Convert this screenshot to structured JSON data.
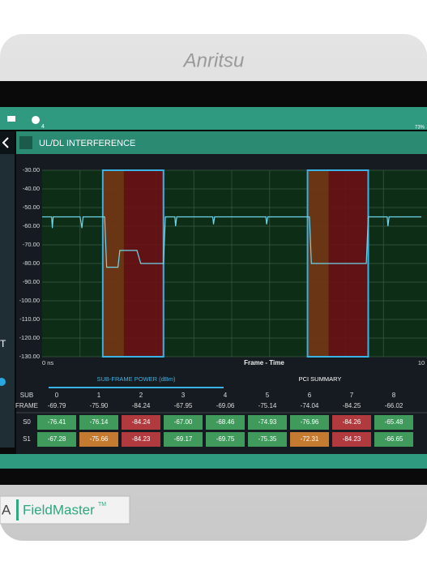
{
  "device": {
    "brand": "Anritsu",
    "model": "FieldMaster",
    "model_mark": "TM",
    "logo_fragment": "A"
  },
  "status_bar": {
    "notifications": "4",
    "battery": "73%"
  },
  "sidebar_text": "T",
  "header": {
    "title": "UL/DL INTERFERENCE"
  },
  "chart_data": {
    "type": "line",
    "x": [
      0,
      0.25,
      0.27,
      0.29,
      1.0,
      1.05,
      1.08,
      1.65,
      1.7,
      2.0,
      2.05,
      2.5,
      2.6,
      3.2,
      3.25,
      3.5,
      3.52,
      3.55,
      4.5,
      4.52,
      4.55,
      5.9,
      5.92,
      5.95,
      7.05,
      7.1,
      8.55,
      8.6,
      9.1,
      9.12,
      9.15,
      10
    ],
    "series": [
      {
        "color": "#6fd6ea",
        "values": [
          -55,
          -55,
          -61,
          -55,
          -55,
          -61,
          -55,
          -55,
          -82,
          -82,
          -73,
          -73,
          -80,
          -80,
          -55,
          -55,
          -60,
          -55,
          -55,
          -59,
          -55,
          -55,
          -59,
          -55,
          -55,
          -80,
          -80,
          -55,
          -55,
          -60,
          -55,
          -55
        ]
      }
    ],
    "xlabel": "Frame - Time",
    "xlim": [
      0,
      10
    ],
    "xticks": [
      {
        "value": 0,
        "label": "0 ns"
      },
      10
    ],
    "xgrid_divisions": 10,
    "ylim": [
      -130,
      -30
    ],
    "yticks": [
      {
        "value": -30,
        "label": "-30.00"
      },
      {
        "value": -40,
        "label": "-40.00"
      },
      {
        "value": -50,
        "label": "-50.00"
      },
      {
        "value": -60,
        "label": "-60.00"
      },
      {
        "value": -70,
        "label": "-70.00"
      },
      {
        "value": -80,
        "label": "-80.00"
      },
      {
        "value": -90,
        "label": "-90.00"
      },
      {
        "value": -100,
        "label": "-100.00"
      },
      {
        "value": -110,
        "label": "-110.00"
      },
      {
        "value": -120,
        "label": "-120.00"
      },
      {
        "value": -130,
        "label": "-130.00"
      }
    ],
    "grid": true,
    "highlight_regions": [
      {
        "start": 1.6,
        "end": 3.2
      },
      {
        "start": 7.0,
        "end": 8.6
      }
    ]
  },
  "tabs": [
    "SUB-FRAME POWER (dBm)",
    "PCI SUMMARY"
  ],
  "table": {
    "corner": [
      "SUB",
      "FRAME"
    ],
    "columns": [
      "0",
      "1",
      "2",
      "3",
      "4",
      "5",
      "6",
      "7",
      "8"
    ],
    "averages": [
      "-69.79",
      "-75.90",
      "-84.24",
      "-67.95",
      "-69.06",
      "-75.14",
      "-74.04",
      "-84.25",
      "-66.02"
    ],
    "rows": [
      {
        "label": "S0",
        "cells": [
          "-76.41",
          "-76.14",
          "-84.24",
          "-67.00",
          "-68.46",
          "-74.93",
          "-76.96",
          "-84.26",
          "-65.48"
        ],
        "colors": [
          "#3f9a5c",
          "#3f9a5c",
          "#b03a3e",
          "#3f9a5c",
          "#3f9a5c",
          "#3f9a5c",
          "#3f9a5c",
          "#b03a3e",
          "#3f9a5c"
        ]
      },
      {
        "label": "S1",
        "cells": [
          "-67.28",
          "-75.66",
          "-84.23",
          "-69.17",
          "-69.75",
          "-75.35",
          "-72.31",
          "-84.23",
          "-66.65"
        ],
        "colors": [
          "#3f9a5c",
          "#c47a30",
          "#b03a3e",
          "#3f9a5c",
          "#3f9a5c",
          "#3f9a5c",
          "#c47a30",
          "#b03a3e",
          "#3f9a5c"
        ]
      }
    ]
  }
}
